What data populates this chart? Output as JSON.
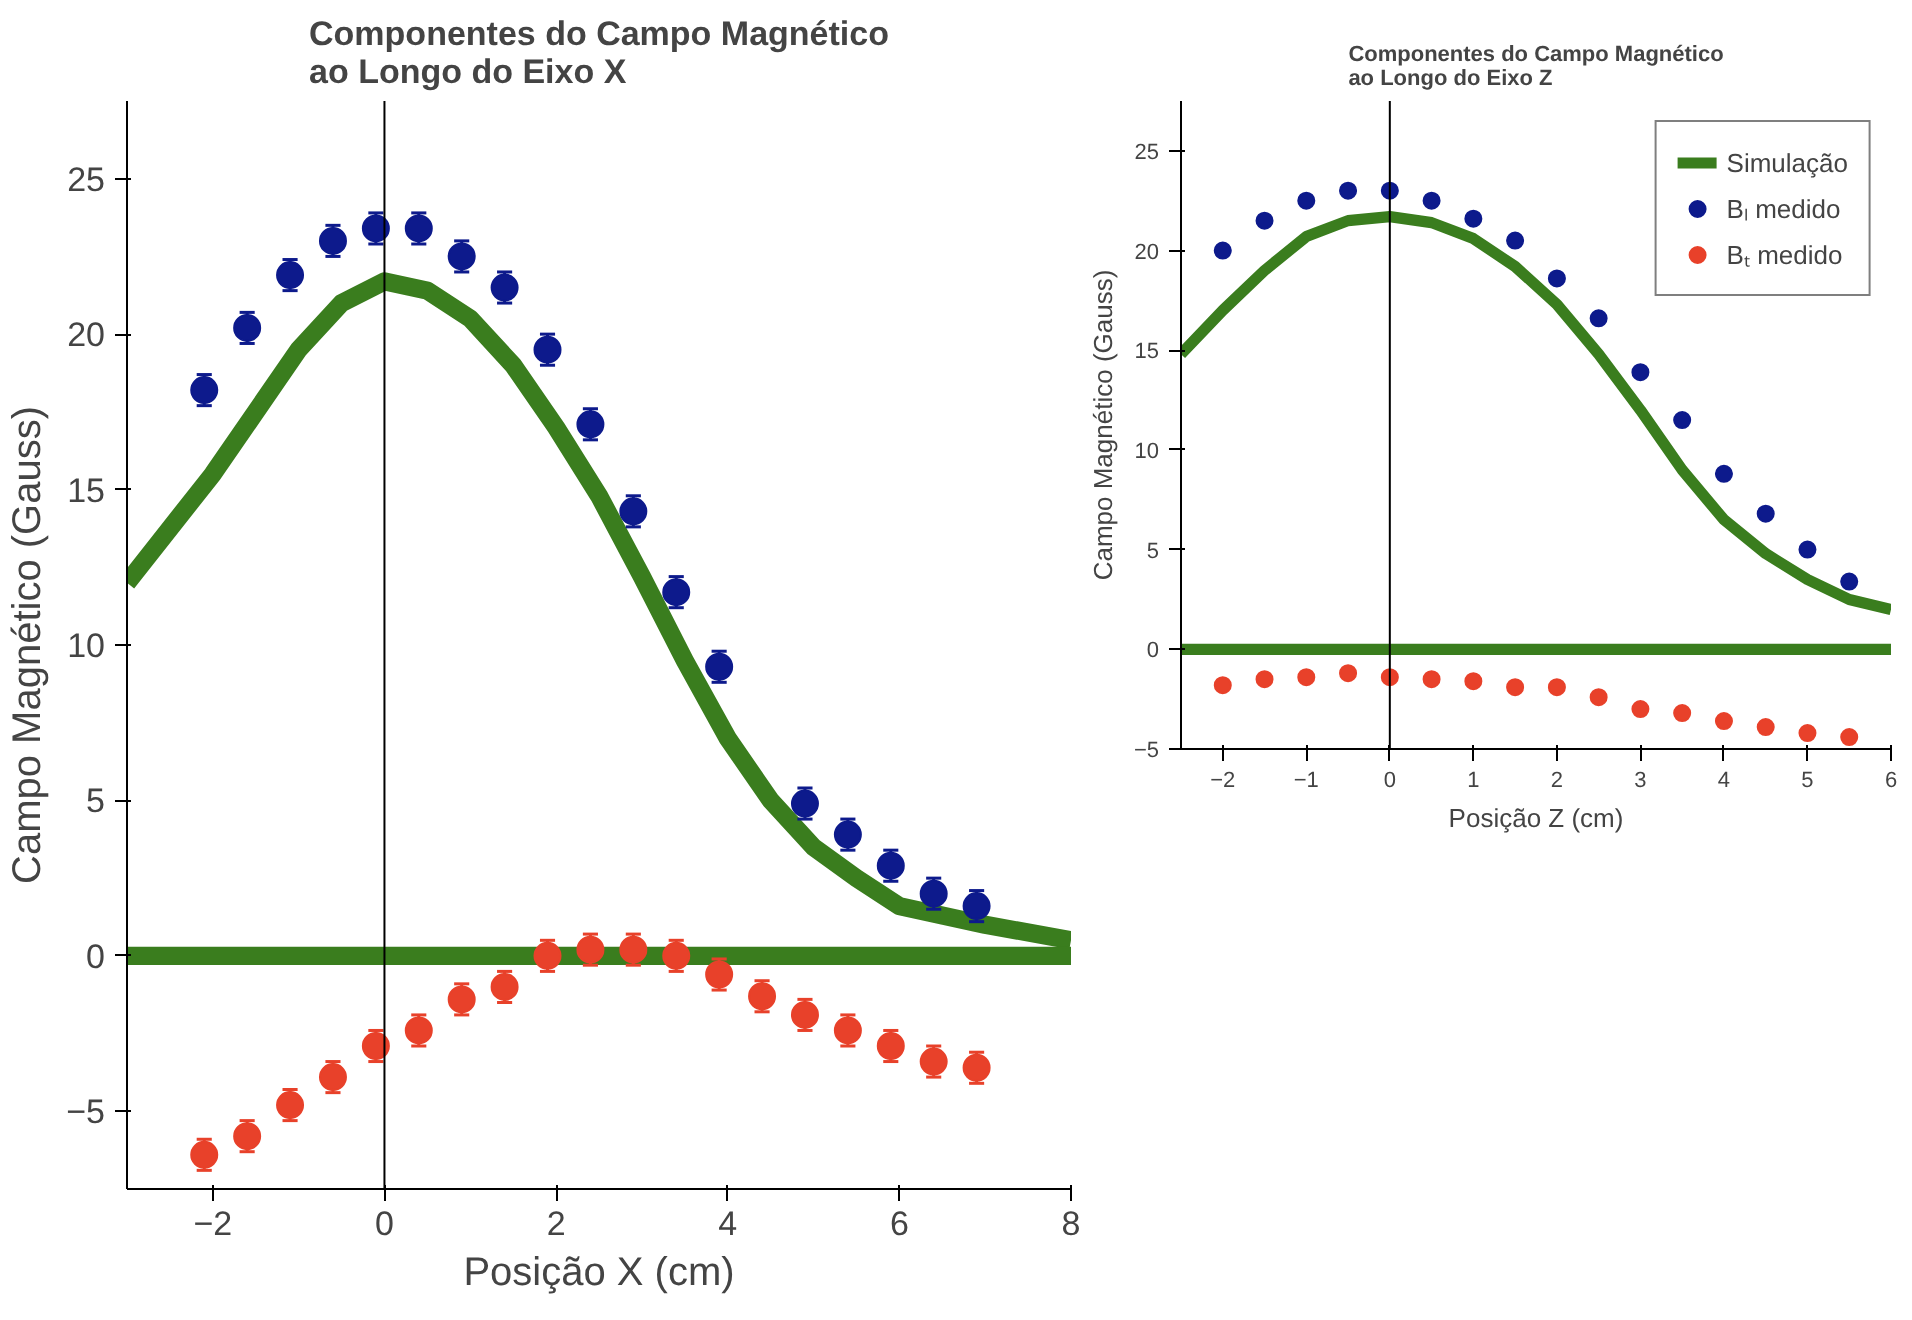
{
  "chart_data": [
    {
      "type": "scatter",
      "title": "Componentes do Campo Magnético\nao Longo do Eixo X",
      "xlabel": "Posição X (cm)",
      "ylabel": "Campo Magnético (Gauss)",
      "xlim": [
        -3,
        8
      ],
      "ylim": [
        -7.5,
        27.5
      ],
      "xticks": [
        -2,
        0,
        2,
        4,
        6,
        8
      ],
      "yticks": [
        -5,
        0,
        5,
        10,
        15,
        20,
        25
      ],
      "grid": false,
      "legend": false,
      "marker": "circle",
      "ref_lines": [
        {
          "axis": "x",
          "value": 0,
          "color": "#000000"
        }
      ],
      "series": [
        {
          "color": "#0d1a8c",
          "x": [
            -2.1,
            -1.6,
            -1.1,
            -0.6,
            -0.1,
            0.4,
            0.9,
            1.4,
            1.9,
            2.4,
            2.9,
            3.4,
            3.9,
            4.4,
            4.9,
            5.4,
            5.9,
            6.4,
            6.9
          ],
          "values": [
            18.2,
            20.2,
            21.9,
            23.0,
            23.4,
            23.4,
            22.5,
            21.5,
            19.5,
            17.1,
            14.3,
            11.7,
            9.3,
            null,
            4.9,
            3.9,
            2.9,
            2.0,
            1.6
          ],
          "errors": [
            0.5,
            0.5,
            0.5,
            0.5,
            0.5,
            0.5,
            0.5,
            0.5,
            0.5,
            0.5,
            0.5,
            0.5,
            0.5,
            null,
            0.5,
            0.5,
            0.5,
            0.5,
            0.5
          ]
        },
        {
          "color": "#e8412a",
          "x": [
            -2.1,
            -1.6,
            -1.1,
            -0.6,
            -0.1,
            0.4,
            0.9,
            1.4,
            1.9,
            2.4,
            2.9,
            3.4,
            3.9,
            4.4,
            4.9,
            5.4,
            5.9,
            6.4,
            6.9
          ],
          "values": [
            -6.4,
            -5.8,
            -4.8,
            -3.9,
            -2.9,
            -2.4,
            -1.4,
            -1.0,
            0.0,
            0.2,
            0.2,
            0.0,
            -0.6,
            -1.3,
            -1.9,
            -2.4,
            -2.9,
            -3.4,
            -3.6
          ],
          "errors": [
            0.5,
            0.5,
            0.5,
            0.5,
            0.5,
            0.5,
            0.5,
            0.5,
            0.5,
            0.5,
            0.5,
            0.5,
            0.5,
            0.5,
            0.5,
            0.5,
            0.5,
            0.5,
            0.5
          ]
        },
        {
          "type": "line",
          "marker": "none",
          "color": "#3a7d1e",
          "x": [
            -3,
            -2,
            -1,
            -0.5,
            0,
            0.5,
            1,
            1.5,
            2,
            2.5,
            3,
            3.5,
            4,
            4.5,
            5,
            5.5,
            6,
            7,
            8
          ],
          "values": [
            12.0,
            15.5,
            19.5,
            21.0,
            21.7,
            21.4,
            20.5,
            19.0,
            17.0,
            14.8,
            12.2,
            9.5,
            7.0,
            5.0,
            3.5,
            2.5,
            1.6,
            1.0,
            0.5
          ]
        },
        {
          "type": "line",
          "marker": "none",
          "color": "#3a7d1e",
          "x": [
            -3,
            8
          ],
          "values": [
            0,
            0
          ]
        }
      ]
    },
    {
      "type": "scatter",
      "title": "Componentes do Campo Magnético\nao Longo do Eixo Z",
      "xlabel": "Posição Z (cm)",
      "ylabel": "Campo Magnético (Gauss)",
      "xlim": [
        -2.5,
        6
      ],
      "ylim": [
        -5,
        27.5
      ],
      "xticks": [
        -2,
        -1,
        0,
        1,
        2,
        3,
        4,
        5,
        6
      ],
      "yticks": [
        -5,
        0,
        5,
        10,
        15,
        20,
        25
      ],
      "grid": false,
      "legend": "top right",
      "marker": "circle",
      "ref_lines": [
        {
          "axis": "x",
          "value": 0,
          "color": "#000000"
        }
      ],
      "series": [
        {
          "name": "Bₗ medido",
          "color": "#0d1a8c",
          "x": [
            -2,
            -1.5,
            -1,
            -0.5,
            0,
            0.5,
            1,
            1.5,
            2,
            2.5,
            3,
            3.5,
            4,
            4.5,
            5,
            5.5
          ],
          "values": [
            20.0,
            21.5,
            22.5,
            23.0,
            23.0,
            22.5,
            21.6,
            20.5,
            18.6,
            16.6,
            13.9,
            11.5,
            8.8,
            6.8,
            5.0,
            3.4
          ],
          "errors": [
            0.4,
            0.4,
            0.4,
            0.4,
            0.4,
            0.4,
            0.4,
            0.4,
            0.4,
            0.4,
            0.4,
            0.4,
            0.4,
            0.4,
            0.4,
            0.4
          ],
          "xerrors": [
            0.1,
            0.1,
            0.1,
            0.1,
            0.1,
            0.1,
            0.1,
            0.1,
            0.1,
            0.1,
            0.1,
            0.1,
            0.1,
            0.1,
            0.1,
            0.1
          ]
        },
        {
          "name": "Bₜ medido",
          "color": "#e8412a",
          "x": [
            -2,
            -1.5,
            -1,
            -0.5,
            0,
            0.5,
            1,
            1.5,
            2,
            2.5,
            3,
            3.5,
            4,
            4.5,
            5,
            5.5
          ],
          "values": [
            -1.8,
            -1.5,
            -1.4,
            -1.2,
            -1.4,
            -1.5,
            -1.6,
            -1.9,
            -1.9,
            -2.4,
            -3.0,
            -3.2,
            -3.6,
            -3.9,
            -4.2,
            -4.4
          ],
          "errors": [
            0.4,
            0.4,
            0.4,
            0.4,
            0.4,
            0.4,
            0.4,
            0.4,
            0.4,
            0.4,
            0.4,
            0.4,
            0.4,
            0.4,
            0.4,
            0.4
          ],
          "xerrors": [
            0.1,
            0.1,
            0.1,
            0.1,
            0.1,
            0.1,
            0.1,
            0.1,
            0.1,
            0.1,
            0.1,
            0.1,
            0.1,
            0.1,
            0.1,
            0.1
          ]
        },
        {
          "type": "line",
          "marker": "none",
          "name": "Simulação",
          "color": "#3a7d1e",
          "x": [
            -2.5,
            -2,
            -1.5,
            -1,
            -0.5,
            0,
            0.5,
            1,
            1.5,
            2,
            2.5,
            3,
            3.5,
            4,
            4.5,
            5,
            5.5,
            6
          ],
          "values": [
            14.8,
            17.0,
            19.0,
            20.7,
            21.5,
            21.7,
            21.4,
            20.6,
            19.2,
            17.3,
            14.8,
            12.0,
            9.0,
            6.5,
            4.8,
            3.5,
            2.5,
            2.0
          ]
        },
        {
          "type": "line",
          "marker": "none",
          "color": "#3a7d1e",
          "x": [
            -2.5,
            6
          ],
          "values": [
            0,
            0
          ]
        }
      ]
    }
  ]
}
